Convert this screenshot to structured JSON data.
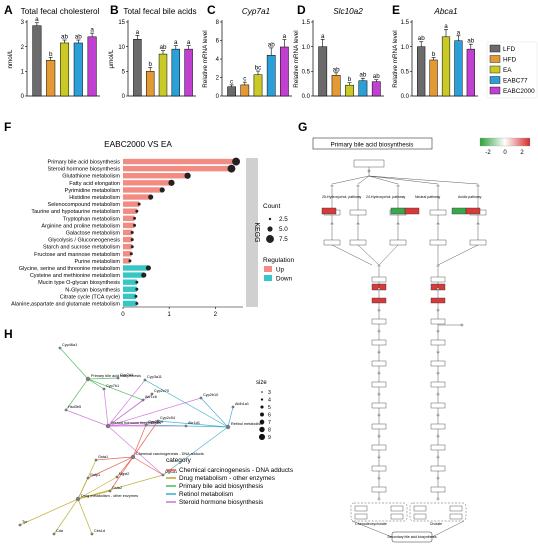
{
  "colors": {
    "LFD": "#6b6b6b",
    "HFD": "#e39a34",
    "EA": "#c9c928",
    "EABC77": "#2a9fd8",
    "EABC2000": "#c13fd1",
    "up": "#f28b82",
    "down": "#36c6c6",
    "kegg_strip": "#d0d0d0",
    "kegg_red": "#d63a3a",
    "kegg_green": "#3aa84a"
  },
  "chart_data": [
    {
      "type": "bar",
      "panel": "A",
      "title": "Total fecal cholesterol",
      "ylabel": "nmol/L",
      "categories": [
        "LFD",
        "HFD",
        "EA",
        "EABC77",
        "EABC2000"
      ],
      "values": [
        2.85,
        1.45,
        2.15,
        2.15,
        2.4
      ],
      "errors": [
        0.12,
        0.12,
        0.12,
        0.12,
        0.15
      ],
      "letters": [
        "a",
        "b",
        "ab",
        "ab",
        "a"
      ],
      "ylim": [
        0,
        3
      ],
      "yticks": [
        "0",
        "1",
        "2",
        "3"
      ]
    },
    {
      "type": "bar",
      "panel": "B",
      "title": "Total fecal bile acids",
      "ylabel": "μmol/L",
      "categories": [
        "LFD",
        "HFD",
        "EA",
        "EABC77",
        "EABC2000"
      ],
      "values": [
        11.5,
        5.0,
        8.5,
        9.5,
        9.5
      ],
      "errors": [
        0.8,
        0.8,
        0.7,
        0.7,
        0.7
      ],
      "letters": [
        "a",
        "b",
        "ab",
        "a",
        "a"
      ],
      "ylim": [
        0,
        15
      ],
      "yticks": [
        "0",
        "5",
        "10",
        "15"
      ]
    },
    {
      "type": "bar",
      "panel": "C",
      "title": "Cyp7a1",
      "ylabel": "Relative mRNA level",
      "categories": [
        "LFD",
        "HFD",
        "EA",
        "EABC77",
        "EABC2000"
      ],
      "values": [
        1.0,
        1.2,
        2.3,
        4.4,
        5.3
      ],
      "errors": [
        0.2,
        0.3,
        0.4,
        0.8,
        0.8
      ],
      "letters": [
        "c",
        "c",
        "bc",
        "ab",
        "a"
      ],
      "ylim": [
        0,
        8
      ],
      "yticks": [
        "0",
        "2",
        "4",
        "6",
        "8"
      ]
    },
    {
      "type": "bar",
      "panel": "D",
      "title": "Slc10a2",
      "ylabel": "Relative mRNA level",
      "categories": [
        "LFD",
        "HFD",
        "EA",
        "EABC77",
        "EABC2000"
      ],
      "values": [
        1.0,
        0.42,
        0.22,
        0.31,
        0.29
      ],
      "errors": [
        0.15,
        0.05,
        0.05,
        0.05,
        0.04
      ],
      "letters": [
        "a",
        "ab",
        "b",
        "ab",
        "ab"
      ],
      "ylim": [
        0,
        1.5
      ],
      "yticks": [
        "0.0",
        "0.5",
        "1.0",
        "1.5"
      ]
    },
    {
      "type": "bar",
      "panel": "E",
      "title": "Abca1",
      "ylabel": "Relative mRNA level",
      "categories": [
        "LFD",
        "HFD",
        "EA",
        "EABC77",
        "EABC2000"
      ],
      "values": [
        1.0,
        0.73,
        1.2,
        1.12,
        0.95
      ],
      "errors": [
        0.1,
        0.05,
        0.15,
        0.1,
        0.1
      ],
      "letters": [
        "ab",
        "b",
        "a",
        "a",
        "ab"
      ],
      "ylim": [
        0,
        1.5
      ],
      "yticks": [
        "0.0",
        "0.5",
        "1.0",
        "1.5"
      ]
    },
    {
      "type": "bar",
      "panel": "F",
      "orientation": "horizontal",
      "title": "EABC2000 VS EA",
      "strip_label": "KEGG",
      "categories": [
        "Primary bile acid biosynthesis",
        "Steroid hormone biosynthesis",
        "Glutathione metabolism",
        "Fatty acid elongation",
        "Pyrimidine metabolism",
        "Histidine metabolism",
        "Selenocompound metabolism",
        "Taurine and hypotaurine metabolism",
        "Tryptophan metabolism",
        "Arginine and proline metabolism",
        "Galactose metabolism",
        "Glycolysis / Gluconeogenesis",
        "Starch and sucrose metabolism",
        "Fructose and mannose metabolism",
        "Purine metabolism",
        "Glycine, serine and threonine metabolism",
        "Cysteine and methionine metabolism",
        "Mucin type O-glycan biosynthesis",
        "N-Glycan biosynthesis",
        "Citrate cycle (TCA cycle)",
        "Alanine,aspartate and glutamate metabolism"
      ],
      "values": [
        2.45,
        2.35,
        1.4,
        1.05,
        0.85,
        0.6,
        0.35,
        0.3,
        0.25,
        0.25,
        0.2,
        0.2,
        0.2,
        0.18,
        0.15,
        0.55,
        0.45,
        0.3,
        0.3,
        0.28,
        0.3
      ],
      "regulation": [
        "Up",
        "Up",
        "Up",
        "Up",
        "Up",
        "Up",
        "Up",
        "Up",
        "Up",
        "Up",
        "Up",
        "Up",
        "Up",
        "Up",
        "Up",
        "Down",
        "Down",
        "Down",
        "Down",
        "Down",
        "Down"
      ],
      "count": [
        7.5,
        7.5,
        6,
        6,
        5,
        5,
        3,
        3,
        3,
        3,
        3,
        3,
        3,
        3,
        3,
        5,
        5,
        3,
        3,
        3,
        3
      ],
      "xlim": [
        0,
        2.6
      ],
      "xticks": [
        "0",
        "1",
        "2"
      ],
      "legend": {
        "count_title": "Count",
        "count_values": [
          "2.5",
          "5.0",
          "7.5"
        ],
        "reg_title": "Regulation",
        "reg_values": [
          "Up",
          "Down"
        ]
      }
    }
  ],
  "legend_groups": [
    "LFD",
    "HFD",
    "EA",
    "EABC77",
    "EABC2000"
  ],
  "panel_labels": [
    "A",
    "B",
    "C",
    "D",
    "E",
    "F",
    "G",
    "H"
  ],
  "pathway": {
    "title": "Primary bile acid biosynthesis",
    "scale_ticks": [
      "-2",
      "0",
      "2"
    ],
    "top_labels": [
      "25-Hydroxychol. pathway",
      "24-Hydroxychol. pathway",
      "Neutral pathway",
      "Acidic pathway"
    ],
    "mid_labels": [
      "Chenodeoxycholate",
      "Cholate"
    ],
    "bottom_label": "Secondary bile acid biosynthesis"
  },
  "network": {
    "nodes": [
      "Cyp46a1",
      "Primary bile acid biosynthesis",
      "Cyp7a1",
      "Cyp7b1",
      "Akr1c6",
      "Hsd3b5",
      "Steroid hormone biosynthesis",
      "Cyp2c70",
      "Cyp3a11",
      "Cyp2b10",
      "Akr1d1",
      "Aldh1a1",
      "Retinol metabolism",
      "Cyp2c54",
      "Cyp2c29",
      "Chemical carcinogenesis - DNA adducts",
      "Gsta1",
      "Mgst2",
      "Gstp1",
      "Gsta2",
      "Ugt1a1",
      "Drug metabolism - other enzymes",
      "Tyr",
      "Cda",
      "Ces1d"
    ],
    "size_title": "size",
    "size_values": [
      "3",
      "4",
      "5",
      "6",
      "7",
      "8",
      "9"
    ],
    "category_title": "category",
    "categories": [
      {
        "label": "Chemical carcinogenesis - DNA adducts",
        "color": "#e64a3c"
      },
      {
        "label": "Drug metabolism - other enzymes",
        "color": "#b5a018"
      },
      {
        "label": "Primary bile acid biosynthesis",
        "color": "#3cb44b"
      },
      {
        "label": "Retinol metabolism",
        "color": "#2aa7c9"
      },
      {
        "label": "Steroid hormone biosynthesis",
        "color": "#c86ad6"
      }
    ]
  }
}
